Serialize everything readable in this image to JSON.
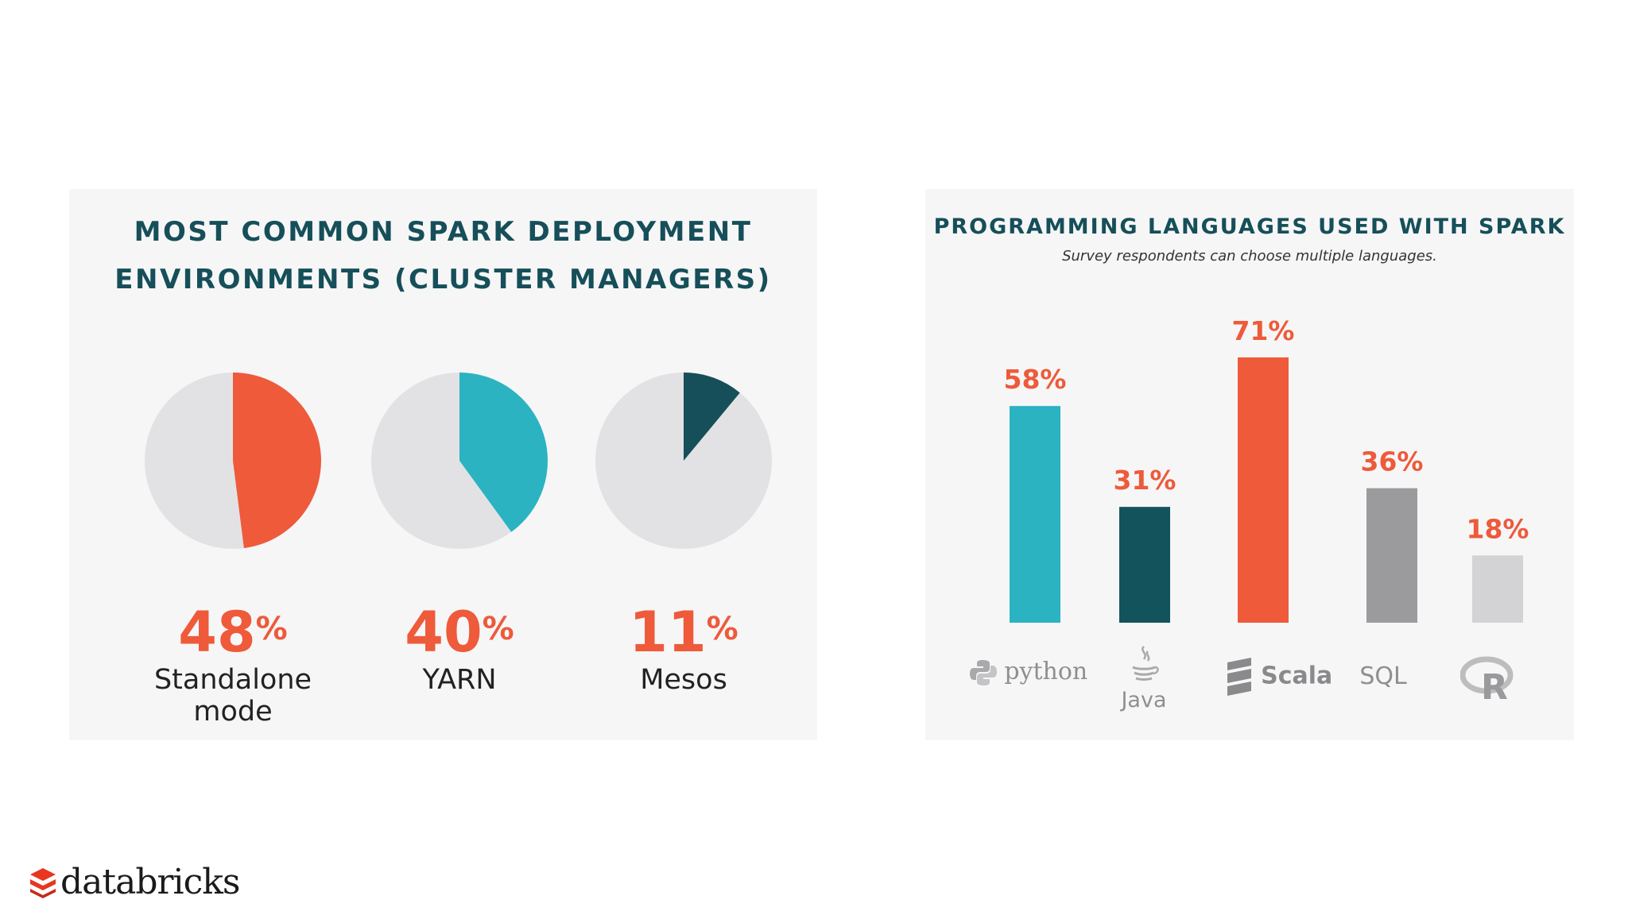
{
  "left_panel": {
    "title_line1": "MOST COMMON SPARK DEPLOYMENT",
    "title_line2": "ENVIRONMENTS (CLUSTER MANAGERS)"
  },
  "right_panel": {
    "title": "PROGRAMMING LANGUAGES USED WITH SPARK",
    "subtitle": "Survey respondents can choose multiple languages."
  },
  "chart_data": [
    {
      "type": "pie",
      "title": "MOST COMMON SPARK DEPLOYMENT ENVIRONMENTS (CLUSTER MANAGERS)",
      "percent_sign": "%",
      "slices": [
        {
          "label": "Standalone mode",
          "value": 48,
          "value_text": "48",
          "color": "#ee5a3a"
        },
        {
          "label": "YARN",
          "value": 40,
          "value_text": "40",
          "color": "#2bb3c2"
        },
        {
          "label": "Mesos",
          "value": 11,
          "value_text": "11",
          "color": "#164f59"
        }
      ],
      "background_color": "#e2e2e4"
    },
    {
      "type": "bar",
      "title": "PROGRAMMING LANGUAGES USED WITH SPARK",
      "subtitle": "Survey respondents can choose multiple languages.",
      "categories": [
        "python",
        "Java",
        "Scala",
        "SQL",
        "R"
      ],
      "values": [
        58,
        31,
        71,
        36,
        18
      ],
      "value_labels": [
        "58%",
        "31%",
        "71%",
        "36%",
        "18%"
      ],
      "colors": [
        "#2bb3c2",
        "#13535c",
        "#ee5a3a",
        "#9b9b9d",
        "#d3d3d5"
      ],
      "label_color": "#ee5a3a",
      "ylim": [
        0,
        71
      ]
    }
  ],
  "icons": {
    "python": "python-logo-icon",
    "java": "java-cup-icon",
    "scala": "scala-logo-icon",
    "r": "r-logo-icon"
  },
  "logo": {
    "text": "databricks",
    "mark_color": "#e8361f"
  }
}
